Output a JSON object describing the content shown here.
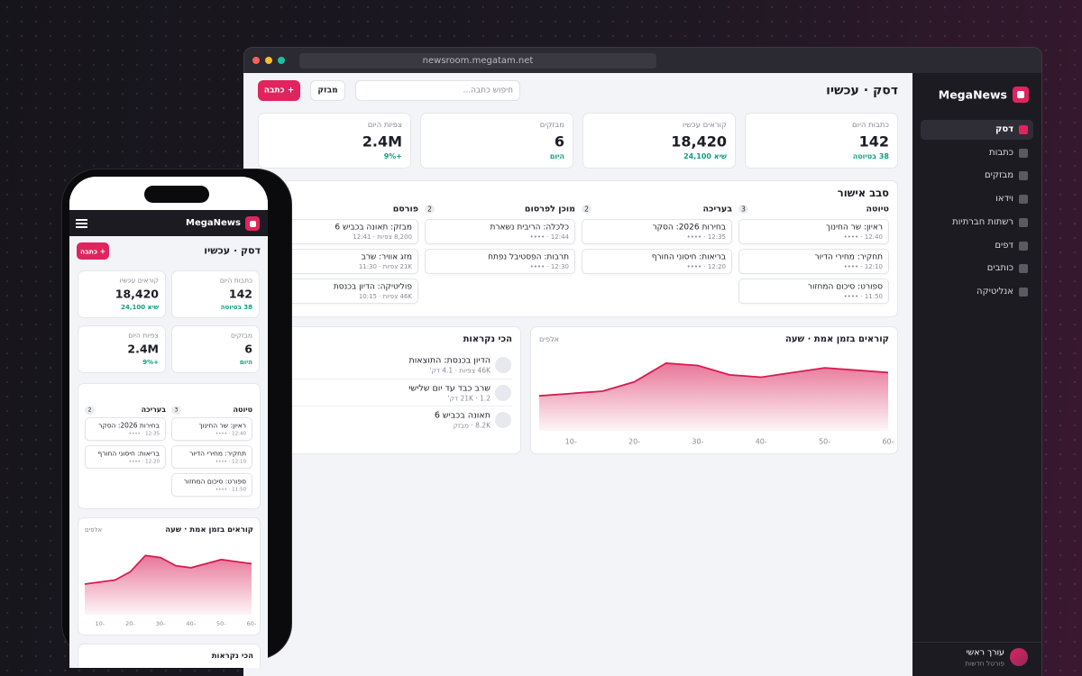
{
  "browser": {
    "url": "newsroom.megatam.net"
  },
  "sidebar": {
    "brand": "MegaNews",
    "nav": [
      "דסק",
      "כתבות",
      "מבזקים",
      "וידאו",
      "רשתות חברתיות",
      "דפים",
      "כותבים",
      "אנליטיקה"
    ],
    "user": {
      "name": "עורך ראשי",
      "role": "פורטל חדשות"
    }
  },
  "header": {
    "title": "דסק · עכשיו",
    "search_placeholder": "חיפוש כתבה...",
    "buttons": [
      "מבזק",
      "+ כתבה"
    ]
  },
  "stats": [
    {
      "label": "כתבות היום",
      "value": "142",
      "note": "38 בטיוטה"
    },
    {
      "label": "קוראים עכשיו",
      "value": "18,420",
      "note": "שיא 24,100"
    },
    {
      "label": "מבזקים",
      "value": "6",
      "note": "היום"
    },
    {
      "label": "צפיות היום",
      "value": "2.4M",
      "note": "+9%"
    }
  ],
  "kanban": {
    "title": "סבב אישור",
    "columns": [
      {
        "name": "טיוטה",
        "count": 3,
        "cards": [
          {
            "title": "ראיון: שר החינוך",
            "meta": "12:40 · ••••"
          },
          {
            "title": "תחקיר: מחירי הדיור",
            "meta": "12:10 · ••••"
          },
          {
            "title": "ספורט: סיכום המחזור",
            "meta": "11:50 · ••••"
          }
        ]
      },
      {
        "name": "בעריכה",
        "count": 2,
        "cards": [
          {
            "title": "בחירות 2026: הסקר",
            "meta": "12:35 · ••••"
          },
          {
            "title": "בריאות: חיסוני החורף",
            "meta": "12:20 · ••••"
          }
        ]
      },
      {
        "name": "מוכן לפרסום",
        "count": 2,
        "cards": [
          {
            "title": "כלכלה: הריבית נשארת",
            "meta": "12:44 · ••••"
          },
          {
            "title": "תרבות: הפסטיבל נפתח",
            "meta": "12:30 · ••••"
          }
        ]
      },
      {
        "name": "פורסם",
        "cards": [
          {
            "title": "מבזק: תאונה בכביש 6",
            "meta": "8,200 צפיות · 12:41"
          },
          {
            "title": "מזג אוויר: שרב",
            "meta": "21K צפיות · 11:30"
          },
          {
            "title": "פוליטיקה: הדיון בכנסת",
            "meta": "46K צפיות · 10:15"
          }
        ]
      }
    ]
  },
  "most_read": {
    "title": "הכי נקראות",
    "items": [
      {
        "title": "הדיון בכנסת: התוצאות",
        "meta": "46K צפיות · 4.1 דק'"
      },
      {
        "title": "שרב כבד עד יום שלישי",
        "meta": "21K · 1.2 דק'"
      },
      {
        "title": "תאונה בכביש 6",
        "meta": "8.2K · מבזק"
      }
    ]
  },
  "chart_data": {
    "type": "area",
    "title": "קוראים בזמן אמת · שעה",
    "unit": "אלפים",
    "x": [
      -5,
      -10,
      -15,
      -20,
      -25,
      -30,
      -35,
      -40,
      -45,
      -50,
      -55,
      -60
    ],
    "xlim": [
      -5,
      -60
    ],
    "xticks": [
      -10,
      -20,
      -30,
      -40,
      -50,
      -60
    ],
    "ylim": [
      8,
      25
    ],
    "series": [
      {
        "color": "#d81b55",
        "values": [
          15.5,
          16,
          16.5,
          18.5,
          22.5,
          22,
          20,
          19.5,
          20.5,
          21.5,
          21,
          20.5
        ]
      }
    ]
  }
}
